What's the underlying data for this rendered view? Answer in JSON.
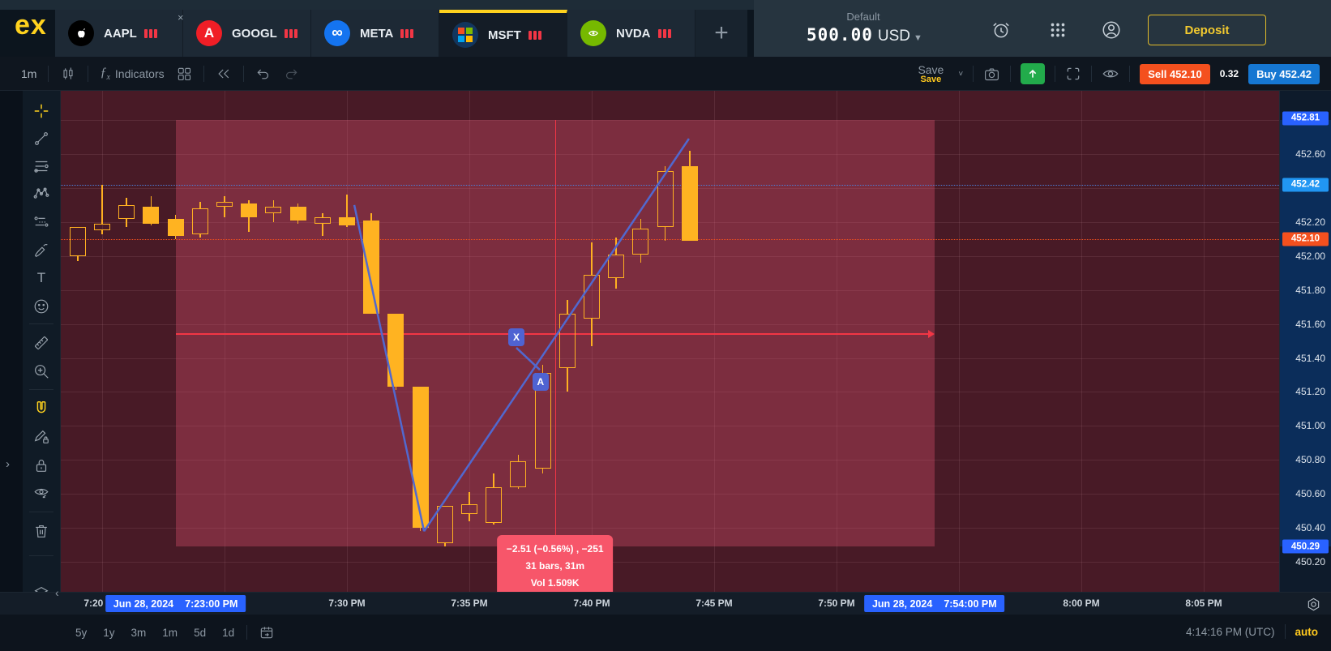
{
  "brand": {
    "logo": "ex"
  },
  "topbar": {
    "close_x": "×",
    "tabs": [
      {
        "label": "AAPL",
        "icon": "apple-icon",
        "active": false
      },
      {
        "label": "GOOGL",
        "icon": "alphabet-icon",
        "active": false
      },
      {
        "label": "META",
        "icon": "meta-icon",
        "active": false
      },
      {
        "label": "MSFT",
        "icon": "microsoft-icon",
        "active": true
      },
      {
        "label": "NVDA",
        "icon": "nvidia-icon",
        "active": false
      }
    ],
    "add_tab": "+",
    "account": {
      "type_label": "Default",
      "balance": "500.00",
      "currency": "USD"
    },
    "icons": [
      "alarm-clock-icon",
      "apps-grid-icon",
      "account-icon"
    ],
    "deposit_label": "Deposit"
  },
  "toolbar": {
    "timeframe": "1m",
    "fx": "ƒ",
    "fx_sub": "x",
    "indicators_label": "Indicators",
    "save_label": "Save",
    "save_tooltip": "Save",
    "sell_text": "Sell 452.10",
    "spread": "0.32",
    "buy_text": "Buy 452.42"
  },
  "sidebar": {
    "tools": [
      "crosshair",
      "trend-line",
      "fib-retracement",
      "xabcd-pattern",
      "long-position",
      "brush",
      "text",
      "emoji",
      "ruler",
      "zoom-in",
      "magnet",
      "draw-lock",
      "lock-all",
      "hide-drawings",
      "remove-drawings",
      "object-tree"
    ],
    "active_tools": [
      "crosshair",
      "magnet"
    ]
  },
  "chart_data": {
    "type": "candlestick",
    "symbol": "MSFT",
    "interval": "1m",
    "date": "Jun 28, 2024",
    "ylim": [
      450.2,
      452.8
    ],
    "y_step": 0.2,
    "grid": true,
    "bid": 452.1,
    "ask": 452.42,
    "range_high": 452.81,
    "range_low": 450.29,
    "candles": [
      {
        "t": "7:19 PM",
        "m": -1,
        "o": 452.0,
        "h": 452.17,
        "l": 451.97,
        "c": 452.17,
        "d": "up"
      },
      {
        "t": "7:20 PM",
        "m": 0,
        "o": 452.15,
        "h": 452.42,
        "l": 452.13,
        "c": 452.19,
        "d": "up"
      },
      {
        "t": "7:21 PM",
        "m": 1,
        "o": 452.22,
        "h": 452.34,
        "l": 452.17,
        "c": 452.3,
        "d": "up"
      },
      {
        "t": "7:22 PM",
        "m": 2,
        "o": 452.29,
        "h": 452.35,
        "l": 452.18,
        "c": 452.19,
        "d": "down"
      },
      {
        "t": "7:23 PM",
        "m": 3,
        "o": 452.22,
        "h": 452.24,
        "l": 452.1,
        "c": 452.12,
        "d": "down"
      },
      {
        "t": "7:24 PM",
        "m": 4,
        "o": 452.13,
        "h": 452.32,
        "l": 452.11,
        "c": 452.28,
        "d": "up"
      },
      {
        "t": "7:25 PM",
        "m": 5,
        "o": 452.29,
        "h": 452.35,
        "l": 452.23,
        "c": 452.32,
        "d": "up"
      },
      {
        "t": "7:26 PM",
        "m": 6,
        "o": 452.31,
        "h": 452.33,
        "l": 452.14,
        "c": 452.23,
        "d": "down"
      },
      {
        "t": "7:27 PM",
        "m": 7,
        "o": 452.25,
        "h": 452.33,
        "l": 452.2,
        "c": 452.29,
        "d": "up"
      },
      {
        "t": "7:28 PM",
        "m": 8,
        "o": 452.29,
        "h": 452.31,
        "l": 452.19,
        "c": 452.21,
        "d": "down"
      },
      {
        "t": "7:29 PM",
        "m": 9,
        "o": 452.19,
        "h": 452.25,
        "l": 452.12,
        "c": 452.23,
        "d": "up"
      },
      {
        "t": "7:30 PM",
        "m": 10,
        "o": 452.23,
        "h": 452.36,
        "l": 452.17,
        "c": 452.18,
        "d": "down"
      },
      {
        "t": "7:31 PM",
        "m": 11,
        "o": 452.21,
        "h": 452.25,
        "l": 451.66,
        "c": 451.66,
        "d": "down"
      },
      {
        "t": "7:32 PM",
        "m": 12,
        "o": 451.66,
        "h": 451.66,
        "l": 451.21,
        "c": 451.23,
        "d": "down"
      },
      {
        "t": "7:33 PM",
        "m": 13,
        "o": 451.23,
        "h": 451.23,
        "l": 450.38,
        "c": 450.4,
        "d": "down"
      },
      {
        "t": "7:34 PM",
        "m": 14,
        "o": 450.31,
        "h": 450.53,
        "l": 450.29,
        "c": 450.53,
        "d": "up"
      },
      {
        "t": "7:35 PM",
        "m": 15,
        "o": 450.48,
        "h": 450.61,
        "l": 450.44,
        "c": 450.54,
        "d": "up"
      },
      {
        "t": "7:36 PM",
        "m": 16,
        "o": 450.43,
        "h": 450.72,
        "l": 450.42,
        "c": 450.64,
        "d": "up"
      },
      {
        "t": "7:37 PM",
        "m": 17,
        "o": 450.64,
        "h": 450.83,
        "l": 450.63,
        "c": 450.79,
        "d": "up"
      },
      {
        "t": "7:38 PM",
        "m": 18,
        "o": 450.75,
        "h": 451.36,
        "l": 450.72,
        "c": 451.31,
        "d": "up"
      },
      {
        "t": "7:39 PM",
        "m": 19,
        "o": 451.34,
        "h": 451.74,
        "l": 451.2,
        "c": 451.66,
        "d": "up"
      },
      {
        "t": "7:40 PM",
        "m": 20,
        "o": 451.63,
        "h": 452.08,
        "l": 451.47,
        "c": 451.89,
        "d": "up"
      },
      {
        "t": "7:41 PM",
        "m": 21,
        "o": 451.87,
        "h": 452.11,
        "l": 451.81,
        "c": 452.01,
        "d": "up"
      },
      {
        "t": "7:42 PM",
        "m": 22,
        "o": 452.01,
        "h": 452.22,
        "l": 451.96,
        "c": 452.16,
        "d": "up"
      },
      {
        "t": "7:43 PM",
        "m": 23,
        "o": 452.17,
        "h": 452.53,
        "l": 452.09,
        "c": 452.5,
        "d": "up"
      },
      {
        "t": "7:44 PM",
        "m": 24,
        "o": 452.53,
        "h": 452.62,
        "l": 452.09,
        "c": 452.09,
        "d": "down"
      }
    ],
    "measure": {
      "from_time": "7:23:00 PM",
      "to_time": "7:54:00 PM",
      "from_m": 3,
      "to_m": 34,
      "price_high": 452.8,
      "price_low": 450.29,
      "change": -2.51,
      "change_pct": -0.56,
      "change_ticks": -251,
      "bars": 31,
      "duration": "31m",
      "volume": "1.509K",
      "line1": "−2.51 (−0.56%) , −251",
      "line2": "31 bars, 31m",
      "line3": "Vol 1.509K"
    },
    "trend_lines": [
      {
        "from": {
          "m": 10.3,
          "p": 452.3
        },
        "to": {
          "m": 13.15,
          "p": 450.38
        }
      },
      {
        "from": {
          "m": 13.15,
          "p": 450.38
        },
        "to": {
          "m": 23.97,
          "p": 452.69
        }
      },
      {
        "from": {
          "m": 16.92,
          "p": 451.46
        },
        "to": {
          "m": 17.88,
          "p": 451.33
        }
      }
    ],
    "point_labels": [
      {
        "text": "X",
        "m": 16.92,
        "p": 451.52
      },
      {
        "text": "A",
        "m": 17.91,
        "p": 451.26
      }
    ]
  },
  "price_axis": {
    "ticks": [
      {
        "label": "452.81",
        "price": 452.81,
        "kind": "range-high-badge"
      },
      {
        "label": "452.60",
        "price": 452.6,
        "kind": "tick"
      },
      {
        "label": "452.42",
        "price": 452.42,
        "kind": "ask-badge"
      },
      {
        "label": "452.20",
        "price": 452.2,
        "kind": "tick"
      },
      {
        "label": "452.10",
        "price": 452.1,
        "kind": "bid-badge"
      },
      {
        "label": "452.00",
        "price": 452.0,
        "kind": "tick"
      },
      {
        "label": "451.80",
        "price": 451.8,
        "kind": "tick"
      },
      {
        "label": "451.60",
        "price": 451.6,
        "kind": "tick"
      },
      {
        "label": "451.40",
        "price": 451.4,
        "kind": "tick"
      },
      {
        "label": "451.20",
        "price": 451.2,
        "kind": "tick"
      },
      {
        "label": "451.00",
        "price": 451.0,
        "kind": "tick"
      },
      {
        "label": "450.80",
        "price": 450.8,
        "kind": "tick"
      },
      {
        "label": "450.60",
        "price": 450.6,
        "kind": "tick"
      },
      {
        "label": "450.40",
        "price": 450.4,
        "kind": "tick"
      },
      {
        "label": "450.29",
        "price": 450.29,
        "kind": "range-low-badge"
      },
      {
        "label": "450.20",
        "price": 450.2,
        "kind": "tick"
      }
    ]
  },
  "time_axis": {
    "labels": [
      {
        "label": "7:20 PM",
        "m": 0
      },
      {
        "label": "7:30 PM",
        "m": 10
      },
      {
        "label": "7:35 PM",
        "m": 15
      },
      {
        "label": "7:40 PM",
        "m": 20
      },
      {
        "label": "7:45 PM",
        "m": 25
      },
      {
        "label": "7:50 PM",
        "m": 30
      },
      {
        "label": "8:00 PM",
        "m": 40
      },
      {
        "label": "8:05 PM",
        "m": 45
      }
    ],
    "badges": [
      {
        "date": "Jun 28, 2024",
        "time": "7:23:00 PM",
        "m": 3
      },
      {
        "date": "Jun 28, 2024",
        "time": "7:54:00 PM",
        "m": 34
      }
    ]
  },
  "bottombar": {
    "ranges": [
      "5y",
      "1y",
      "3m",
      "1m",
      "5d",
      "1d"
    ],
    "clock": "4:14:16 PM (UTC)",
    "mode": "auto"
  },
  "colors": {
    "accent_yellow": "#ffd21e",
    "candle": "#ffb021",
    "sell_red": "#f4501e",
    "buy_blue": "#1677d2",
    "range_badge_blue": "#2962ff",
    "ask_badge_blue": "#2196f3",
    "measure_red": "#f23645",
    "tooltip_pink": "#f7566a",
    "trend_blue": "#5168cf",
    "chart_bg": "#481a26"
  }
}
